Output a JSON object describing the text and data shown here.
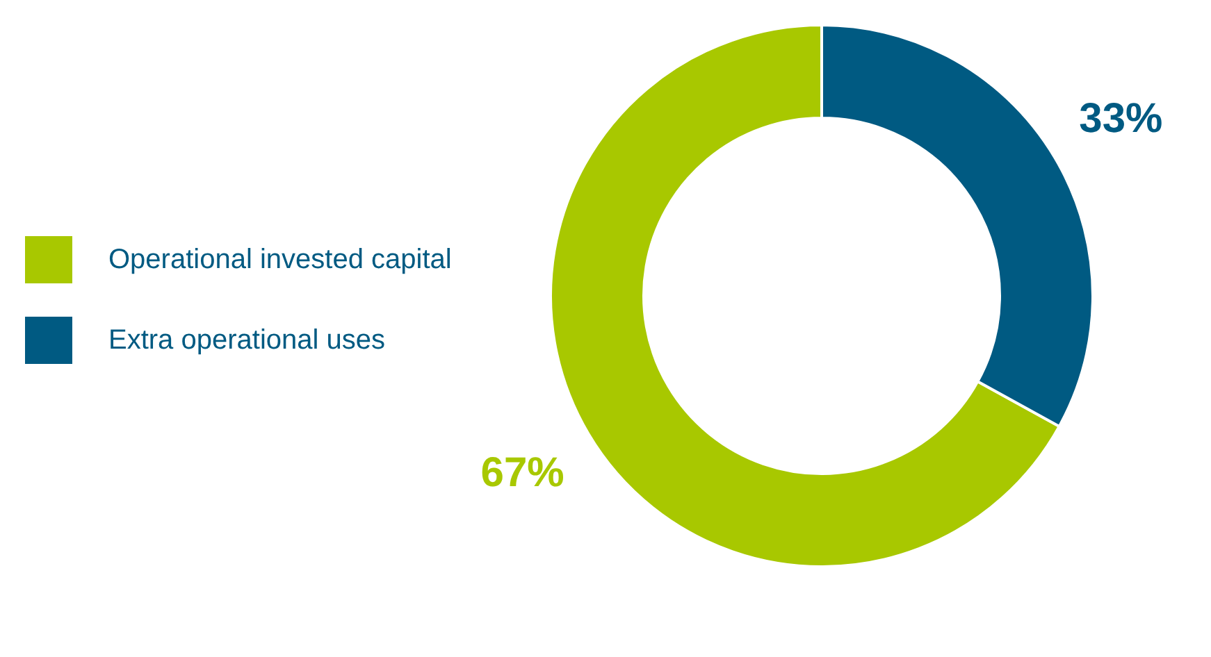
{
  "chart_data": {
    "type": "donut",
    "categories": [
      "Operational invested capital",
      "Extra operational uses"
    ],
    "values": [
      67,
      33
    ],
    "colors": [
      "#a8c800",
      "#005a82"
    ],
    "legend": "left",
    "value_labels": [
      "67%",
      "33%"
    ]
  }
}
